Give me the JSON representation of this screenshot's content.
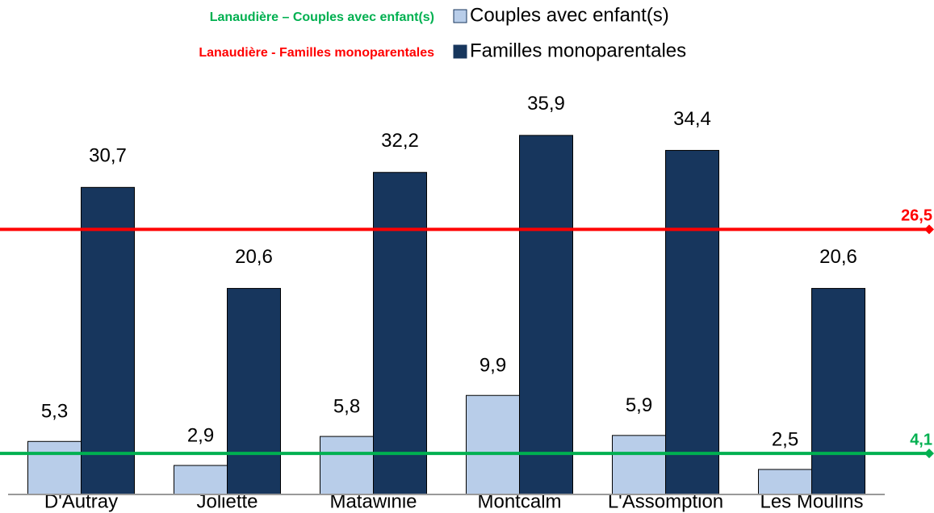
{
  "chart_data": {
    "type": "bar",
    "categories": [
      "D'Autray",
      "Joliette",
      "Matawinie",
      "Montcalm",
      "L'Assomption",
      "Les Moulins"
    ],
    "series": [
      {
        "name": "Couples avec enfant(s)",
        "color": "#b8cde9",
        "values": [
          5.3,
          2.9,
          5.8,
          9.9,
          5.9,
          2.5
        ],
        "value_labels": [
          "5,3",
          "2,9",
          "5,8",
          "9,9",
          "5,9",
          "2,5"
        ]
      },
      {
        "name": "Familles monoparentales",
        "color": "#17365d",
        "values": [
          30.7,
          20.6,
          32.2,
          35.9,
          34.4,
          20.6
        ],
        "value_labels": [
          "30,7",
          "20,6",
          "32,2",
          "35,9",
          "34,4",
          "20,6"
        ]
      }
    ],
    "reference_lines": [
      {
        "name": "Lanaudière – Couples avec enfant(s)",
        "value": 4.1,
        "value_label": "4,1",
        "color": "#00b050"
      },
      {
        "name": "Lanaudière - Familles monoparentales",
        "value": 26.5,
        "value_label": "26,5",
        "color": "#ff0000"
      }
    ],
    "legend": "top-right"
  }
}
